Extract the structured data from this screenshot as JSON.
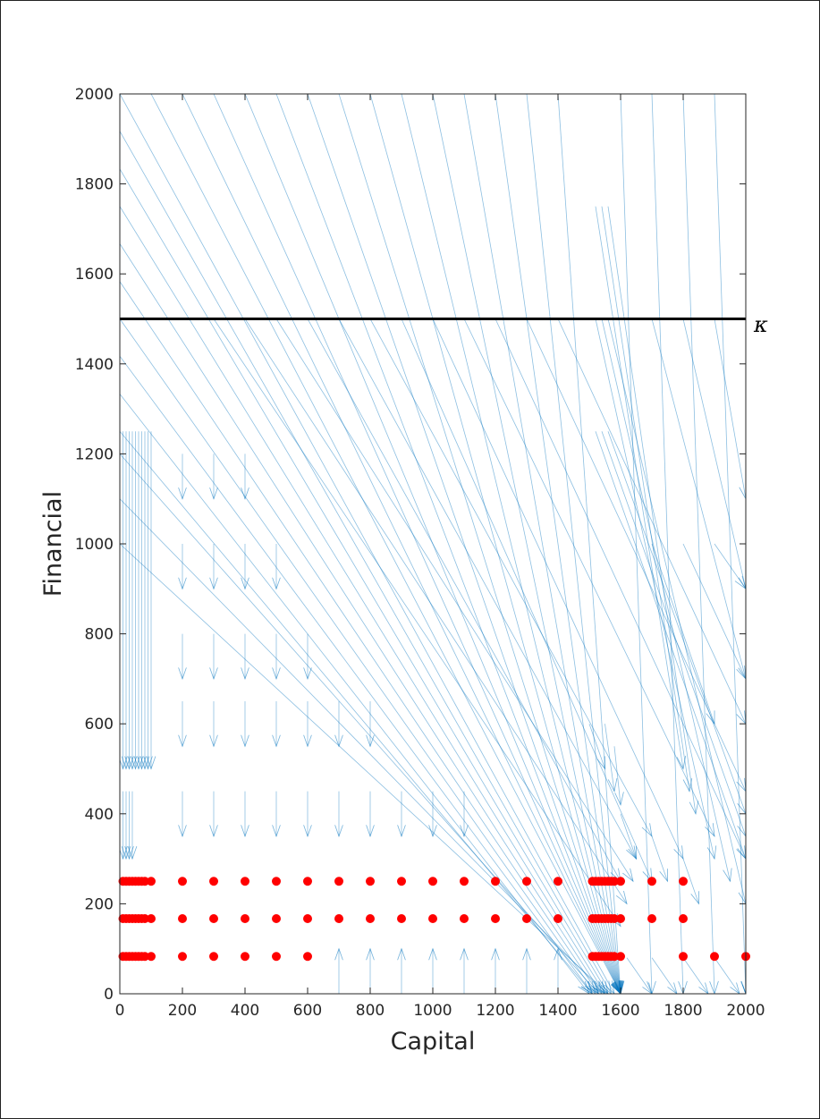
{
  "chart_data": {
    "type": "scatter",
    "title": "",
    "xlabel": "Capital",
    "ylabel": "Financial",
    "xlim": [
      0,
      2000
    ],
    "ylim": [
      0,
      2000
    ],
    "xticks": [
      0,
      200,
      400,
      600,
      800,
      1000,
      1200,
      1400,
      1600,
      1800,
      2000
    ],
    "yticks": [
      0,
      200,
      400,
      600,
      800,
      1000,
      1200,
      1400,
      1600,
      1800,
      2000
    ],
    "grid": false,
    "reference_line": {
      "orientation": "horizontal",
      "y": 1500,
      "label": "κ",
      "color": "#000000"
    },
    "series": [
      {
        "kind": "points",
        "color": "#ff0000",
        "points": [
          [
            10,
            250
          ],
          [
            20,
            250
          ],
          [
            30,
            250
          ],
          [
            40,
            250
          ],
          [
            50,
            250
          ],
          [
            60,
            250
          ],
          [
            70,
            250
          ],
          [
            80,
            250
          ],
          [
            100,
            250
          ],
          [
            200,
            250
          ],
          [
            300,
            250
          ],
          [
            400,
            250
          ],
          [
            500,
            250
          ],
          [
            600,
            250
          ],
          [
            700,
            250
          ],
          [
            800,
            250
          ],
          [
            900,
            250
          ],
          [
            1000,
            250
          ],
          [
            1100,
            250
          ],
          [
            1200,
            250
          ],
          [
            1300,
            250
          ],
          [
            1400,
            250
          ],
          [
            1510,
            250
          ],
          [
            1520,
            250
          ],
          [
            1530,
            250
          ],
          [
            1540,
            250
          ],
          [
            1550,
            250
          ],
          [
            1560,
            250
          ],
          [
            1570,
            250
          ],
          [
            1580,
            250
          ],
          [
            1600,
            250
          ],
          [
            1700,
            250
          ],
          [
            1800,
            250
          ],
          [
            10,
            167
          ],
          [
            20,
            167
          ],
          [
            30,
            167
          ],
          [
            40,
            167
          ],
          [
            50,
            167
          ],
          [
            60,
            167
          ],
          [
            70,
            167
          ],
          [
            80,
            167
          ],
          [
            100,
            167
          ],
          [
            200,
            167
          ],
          [
            300,
            167
          ],
          [
            400,
            167
          ],
          [
            500,
            167
          ],
          [
            600,
            167
          ],
          [
            700,
            167
          ],
          [
            800,
            167
          ],
          [
            900,
            167
          ],
          [
            1000,
            167
          ],
          [
            1100,
            167
          ],
          [
            1200,
            167
          ],
          [
            1300,
            167
          ],
          [
            1400,
            167
          ],
          [
            1510,
            167
          ],
          [
            1520,
            167
          ],
          [
            1530,
            167
          ],
          [
            1540,
            167
          ],
          [
            1550,
            167
          ],
          [
            1560,
            167
          ],
          [
            1570,
            167
          ],
          [
            1580,
            167
          ],
          [
            1600,
            167
          ],
          [
            1700,
            167
          ],
          [
            1800,
            167
          ],
          [
            10,
            83
          ],
          [
            20,
            83
          ],
          [
            30,
            83
          ],
          [
            40,
            83
          ],
          [
            50,
            83
          ],
          [
            60,
            83
          ],
          [
            70,
            83
          ],
          [
            80,
            83
          ],
          [
            100,
            83
          ],
          [
            200,
            83
          ],
          [
            300,
            83
          ],
          [
            400,
            83
          ],
          [
            500,
            83
          ],
          [
            600,
            83
          ],
          [
            1510,
            83
          ],
          [
            1520,
            83
          ],
          [
            1530,
            83
          ],
          [
            1540,
            83
          ],
          [
            1550,
            83
          ],
          [
            1560,
            83
          ],
          [
            1570,
            83
          ],
          [
            1580,
            83
          ],
          [
            1600,
            83
          ],
          [
            1800,
            83
          ],
          [
            1900,
            83
          ],
          [
            2000,
            83
          ]
        ]
      },
      {
        "kind": "vector_field",
        "color": "#0072bd",
        "vectors": [
          [
            0,
            1333,
            1500,
            0
          ],
          [
            0,
            1417,
            1510,
            0
          ],
          [
            0,
            1500,
            1520,
            0
          ],
          [
            0,
            1583,
            1530,
            0
          ],
          [
            0,
            1667,
            1540,
            0
          ],
          [
            0,
            1750,
            1550,
            0
          ],
          [
            0,
            1833,
            1560,
            0
          ],
          [
            0,
            1917,
            1570,
            0
          ],
          [
            0,
            2000,
            1580,
            0
          ],
          [
            100,
            2000,
            1600,
            0
          ],
          [
            200,
            2000,
            1600,
            0
          ],
          [
            300,
            2000,
            1600,
            0
          ],
          [
            400,
            2000,
            1600,
            0
          ],
          [
            500,
            2000,
            1600,
            0
          ],
          [
            600,
            2000,
            1600,
            0
          ],
          [
            700,
            2000,
            1600,
            0
          ],
          [
            800,
            2000,
            1600,
            0
          ],
          [
            900,
            2000,
            1600,
            0
          ],
          [
            1000,
            2000,
            1600,
            0
          ],
          [
            1100,
            2000,
            1600,
            0
          ],
          [
            1200,
            2000,
            1600,
            0
          ],
          [
            1300,
            2000,
            1600,
            0
          ],
          [
            1400,
            2000,
            1600,
            0
          ],
          [
            1600,
            2000,
            1700,
            0
          ],
          [
            1700,
            2000,
            1800,
            0
          ],
          [
            1800,
            2000,
            1900,
            0
          ],
          [
            1900,
            2000,
            2000,
            0
          ],
          [
            2000,
            2000,
            2000,
            0
          ],
          [
            0,
            1250,
            1510,
            0
          ],
          [
            0,
            1200,
            1530,
            0
          ],
          [
            0,
            1100,
            1550,
            0
          ],
          [
            0,
            1000,
            1560,
            0
          ],
          [
            1520,
            1750,
            1800,
            500
          ],
          [
            1540,
            1750,
            1820,
            450
          ],
          [
            1560,
            1750,
            1840,
            400
          ],
          [
            1520,
            1500,
            1900,
            300
          ],
          [
            1540,
            1500,
            1950,
            250
          ],
          [
            1560,
            1500,
            2000,
            200
          ],
          [
            1520,
            1250,
            2000,
            300
          ],
          [
            1540,
            1250,
            2000,
            350
          ],
          [
            1560,
            1250,
            2000,
            400
          ],
          [
            1700,
            1500,
            2000,
            700
          ],
          [
            1800,
            1500,
            2000,
            900
          ],
          [
            1900,
            1500,
            2000,
            1100
          ],
          [
            1700,
            1000,
            1900,
            600
          ],
          [
            1800,
            1000,
            2000,
            700
          ],
          [
            1900,
            1000,
            2000,
            900
          ],
          [
            1200,
            1500,
            2000,
            300
          ],
          [
            1300,
            1500,
            2000,
            450
          ],
          [
            1400,
            1500,
            2000,
            600
          ],
          [
            900,
            1500,
            1700,
            250
          ],
          [
            1000,
            1500,
            1800,
            300
          ],
          [
            1100,
            1500,
            1900,
            350
          ],
          [
            600,
            1500,
            1600,
            250
          ],
          [
            700,
            1500,
            1650,
            300
          ],
          [
            800,
            1500,
            1700,
            350
          ],
          [
            300,
            1500,
            1600,
            150
          ],
          [
            400,
            1500,
            1620,
            200
          ],
          [
            500,
            1500,
            1640,
            250
          ],
          [
            1600,
            400,
            1650,
            300
          ],
          [
            1700,
            350,
            1750,
            250
          ],
          [
            1800,
            300,
            1850,
            200
          ],
          [
            1500,
            600,
            1550,
            500
          ],
          [
            1550,
            600,
            1580,
            450
          ],
          [
            1580,
            550,
            1600,
            420
          ],
          [
            10,
            1250,
            10,
            500
          ],
          [
            20,
            1250,
            20,
            500
          ],
          [
            30,
            1250,
            30,
            500
          ],
          [
            40,
            1250,
            40,
            500
          ],
          [
            50,
            1250,
            50,
            500
          ],
          [
            60,
            1250,
            60,
            500
          ],
          [
            70,
            1250,
            70,
            500
          ],
          [
            80,
            1250,
            80,
            500
          ],
          [
            90,
            1250,
            90,
            500
          ],
          [
            100,
            1250,
            100,
            500
          ],
          [
            10,
            450,
            10,
            300
          ],
          [
            20,
            450,
            20,
            300
          ],
          [
            30,
            450,
            30,
            300
          ],
          [
            40,
            450,
            40,
            300
          ],
          [
            200,
            1200,
            200,
            1100
          ],
          [
            200,
            1000,
            200,
            900
          ],
          [
            200,
            800,
            200,
            700
          ],
          [
            200,
            650,
            200,
            550
          ],
          [
            200,
            450,
            200,
            350
          ],
          [
            300,
            1200,
            300,
            1100
          ],
          [
            300,
            1000,
            300,
            900
          ],
          [
            300,
            800,
            300,
            700
          ],
          [
            300,
            650,
            300,
            550
          ],
          [
            300,
            450,
            300,
            350
          ],
          [
            400,
            1200,
            400,
            1100
          ],
          [
            400,
            1000,
            400,
            900
          ],
          [
            400,
            800,
            400,
            700
          ],
          [
            400,
            650,
            400,
            550
          ],
          [
            400,
            450,
            400,
            350
          ],
          [
            500,
            1000,
            500,
            900
          ],
          [
            500,
            800,
            500,
            700
          ],
          [
            500,
            650,
            500,
            550
          ],
          [
            500,
            450,
            500,
            350
          ],
          [
            600,
            800,
            600,
            700
          ],
          [
            600,
            650,
            600,
            550
          ],
          [
            600,
            450,
            600,
            350
          ],
          [
            700,
            650,
            700,
            550
          ],
          [
            700,
            450,
            700,
            350
          ],
          [
            800,
            650,
            800,
            550
          ],
          [
            800,
            450,
            800,
            350
          ],
          [
            900,
            450,
            900,
            350
          ],
          [
            1000,
            450,
            1000,
            350
          ],
          [
            1100,
            450,
            1100,
            350
          ],
          [
            700,
            0,
            700,
            100
          ],
          [
            800,
            0,
            800,
            100
          ],
          [
            900,
            0,
            900,
            100
          ],
          [
            1000,
            0,
            1000,
            100
          ],
          [
            1100,
            0,
            1100,
            100
          ],
          [
            1200,
            0,
            1200,
            100
          ],
          [
            1300,
            0,
            1300,
            100
          ],
          [
            1400,
            0,
            1400,
            100
          ],
          [
            1620,
            80,
            1700,
            0
          ],
          [
            1700,
            80,
            1780,
            0
          ],
          [
            1800,
            80,
            1880,
            0
          ],
          [
            1900,
            80,
            1980,
            0
          ],
          [
            2000,
            80,
            2000,
            0
          ]
        ]
      }
    ]
  }
}
